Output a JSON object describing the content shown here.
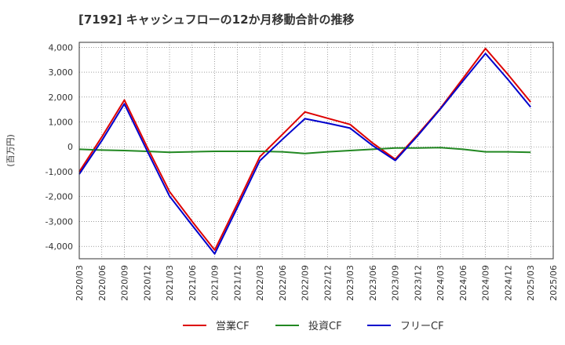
{
  "chart_data": {
    "type": "line",
    "title": "[7192]  キャッシュフローの12か月移動合計の推移",
    "ylabel": "(百万円)",
    "xlabel": "",
    "ylim": [
      -4500,
      4200
    ],
    "yticks": [
      4000,
      3000,
      2000,
      1000,
      0,
      -1000,
      -2000,
      -3000,
      -4000
    ],
    "ytick_labels": [
      "4,000",
      "3,000",
      "2,000",
      "1,000",
      "0",
      "-1,000",
      "-2,000",
      "-3,000",
      "-4,000"
    ],
    "categories": [
      "2020/03",
      "2020/06",
      "2020/09",
      "2020/12",
      "2021/03",
      "2021/06",
      "2021/09",
      "2021/12",
      "2022/03",
      "2022/06",
      "2022/09",
      "2022/12",
      "2023/03",
      "2023/06",
      "2023/09",
      "2023/12",
      "2024/03",
      "2024/06",
      "2024/09",
      "2024/12",
      "2025/03",
      "2025/06"
    ],
    "grid": true,
    "legend_position": "bottom",
    "series": [
      {
        "name": "営業CF",
        "color": "#dd0000",
        "values": [
          -1000,
          400,
          1880,
          0,
          -1800,
          -3000,
          -4150,
          -2300,
          -400,
          500,
          1400,
          1150,
          900,
          150,
          -500,
          500,
          1550,
          2750,
          3950,
          2900,
          1800,
          null
        ]
      },
      {
        "name": "投資CF",
        "color": "#228822",
        "values": [
          -100,
          -130,
          -150,
          -180,
          -220,
          -200,
          -180,
          -180,
          -180,
          -200,
          -270,
          -200,
          -150,
          -100,
          -50,
          -50,
          -30,
          -100,
          -200,
          -200,
          -220,
          null
        ]
      },
      {
        "name": "フリーCF",
        "color": "#0000cc",
        "values": [
          -1100,
          250,
          1730,
          -150,
          -1980,
          -3150,
          -4300,
          -2450,
          -560,
          300,
          1130,
          950,
          750,
          50,
          -550,
          450,
          1520,
          2650,
          3750,
          2700,
          1600,
          null
        ]
      }
    ]
  }
}
